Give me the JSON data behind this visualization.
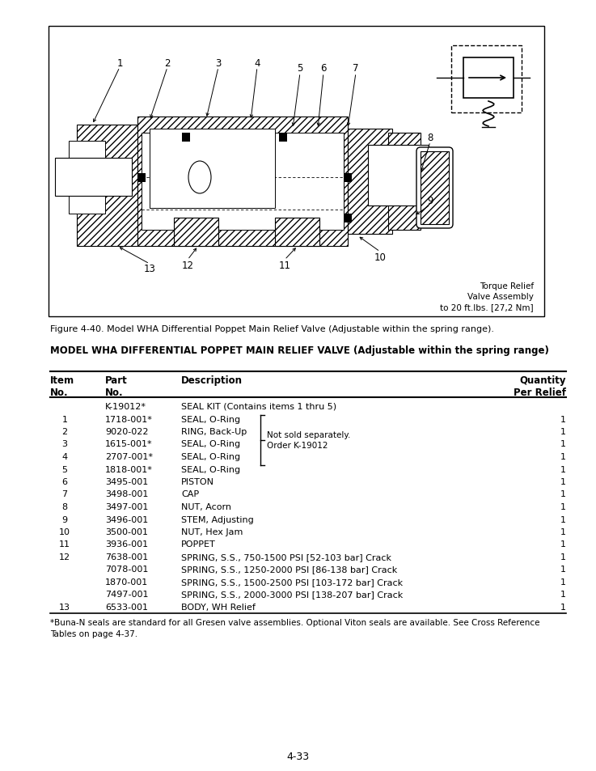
{
  "page_number": "4-33",
  "figure_caption": "Figure 4-40. Model WHA Differential Poppet Main Relief Valve (Adjustable within the spring range).",
  "section_title": "MODEL WHA DIFFERENTIAL POPPET MAIN RELIEF VALVE (Adjustable within the spring range)",
  "torque_note": "Torque Relief\nValve Assembly\nto 20 ft.lbs. [27,2 Nm]",
  "footnote": "*Buna-N seals are standard for all Gresen valve assemblies. Optional Viton seals are available. See Cross Reference\nTables on page 4-37.",
  "rows": [
    {
      "item": "",
      "part": "K-19012*",
      "desc": "SEAL KIT (Contains items 1 thru 5)",
      "qty": ""
    },
    {
      "item": "1",
      "part": "1718-001*",
      "desc": "SEAL, O-Ring",
      "qty": "1"
    },
    {
      "item": "2",
      "part": "9020-022",
      "desc": "RING, Back-Up",
      "qty": "1"
    },
    {
      "item": "3",
      "part": "1615-001*",
      "desc": "SEAL, O-Ring",
      "qty": "1"
    },
    {
      "item": "4",
      "part": "2707-001*",
      "desc": "SEAL, O-Ring",
      "qty": "1"
    },
    {
      "item": "5",
      "part": "1818-001*",
      "desc": "SEAL, O-Ring",
      "qty": "1"
    },
    {
      "item": "6",
      "part": "3495-001",
      "desc": "PISTON",
      "qty": "1"
    },
    {
      "item": "7",
      "part": "3498-001",
      "desc": "CAP",
      "qty": "1"
    },
    {
      "item": "8",
      "part": "3497-001",
      "desc": "NUT, Acorn",
      "qty": "1"
    },
    {
      "item": "9",
      "part": "3496-001",
      "desc": "STEM, Adjusting",
      "qty": "1"
    },
    {
      "item": "10",
      "part": "3500-001",
      "desc": "NUT, Hex Jam",
      "qty": "1"
    },
    {
      "item": "11",
      "part": "3936-001",
      "desc": "POPPET",
      "qty": "1"
    },
    {
      "item": "12",
      "part": "7638-001",
      "desc": "SPRING, S.S., 750-1500 PSI [52-103 bar] Crack",
      "qty": "1"
    },
    {
      "item": "",
      "part": "7078-001",
      "desc": "SPRING, S.S., 1250-2000 PSI [86-138 bar] Crack",
      "qty": "1"
    },
    {
      "item": "",
      "part": "1870-001",
      "desc": "SPRING, S.S., 1500-2500 PSI [103-172 bar] Crack",
      "qty": "1"
    },
    {
      "item": "",
      "part": "7497-001",
      "desc": "SPRING, S.S., 2000-3000 PSI [138-207 bar] Crack",
      "qty": "1"
    },
    {
      "item": "13",
      "part": "6533-001",
      "desc": "BODY, WH Relief",
      "qty": "1"
    }
  ],
  "bracket_note": "Not sold separately.\nOrder K-19012",
  "bg_color": "#ffffff"
}
